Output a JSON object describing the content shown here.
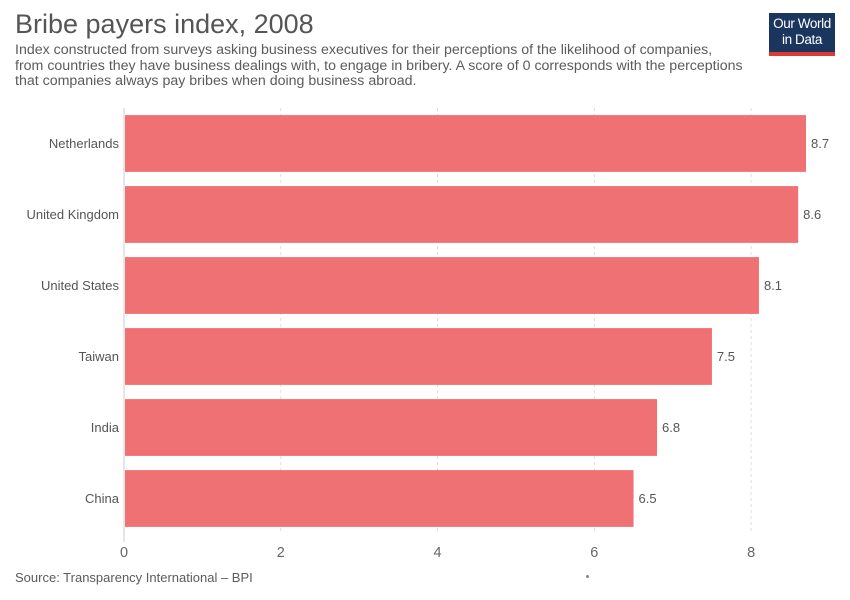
{
  "header": {
    "title": "Bribe payers index, 2008",
    "subtitle_lines": [
      "Index constructed from surveys asking business executives for their perceptions of the likelihood of companies,",
      "from countries they have business dealings with, to engage in bribery. A score of 0 corresponds with the perceptions",
      "that companies always pay bribes when doing business abroad."
    ]
  },
  "logo": {
    "line1": "Our World",
    "line2": "in Data",
    "bg_color": "#1a355e",
    "accent_color": "#dc3a35"
  },
  "footer": {
    "source": "Source: Transparency International – BPI"
  },
  "chart_data": {
    "type": "bar",
    "orientation": "horizontal",
    "title": "Bribe payers index, 2008",
    "categories": [
      "Netherlands",
      "United Kingdom",
      "United States",
      "Taiwan",
      "India",
      "China"
    ],
    "values": [
      8.7,
      8.6,
      8.1,
      7.5,
      6.8,
      6.5
    ],
    "value_labels": [
      "8.7",
      "8.6",
      "8.1",
      "7.5",
      "6.8",
      "6.5"
    ],
    "xlim": [
      0,
      8.7
    ],
    "x_ticks": [
      0,
      2,
      4,
      6,
      8
    ],
    "x_tick_labels": [
      "0",
      "2",
      "4",
      "6",
      "8"
    ],
    "grid": true,
    "bar_color": "#f07174"
  }
}
